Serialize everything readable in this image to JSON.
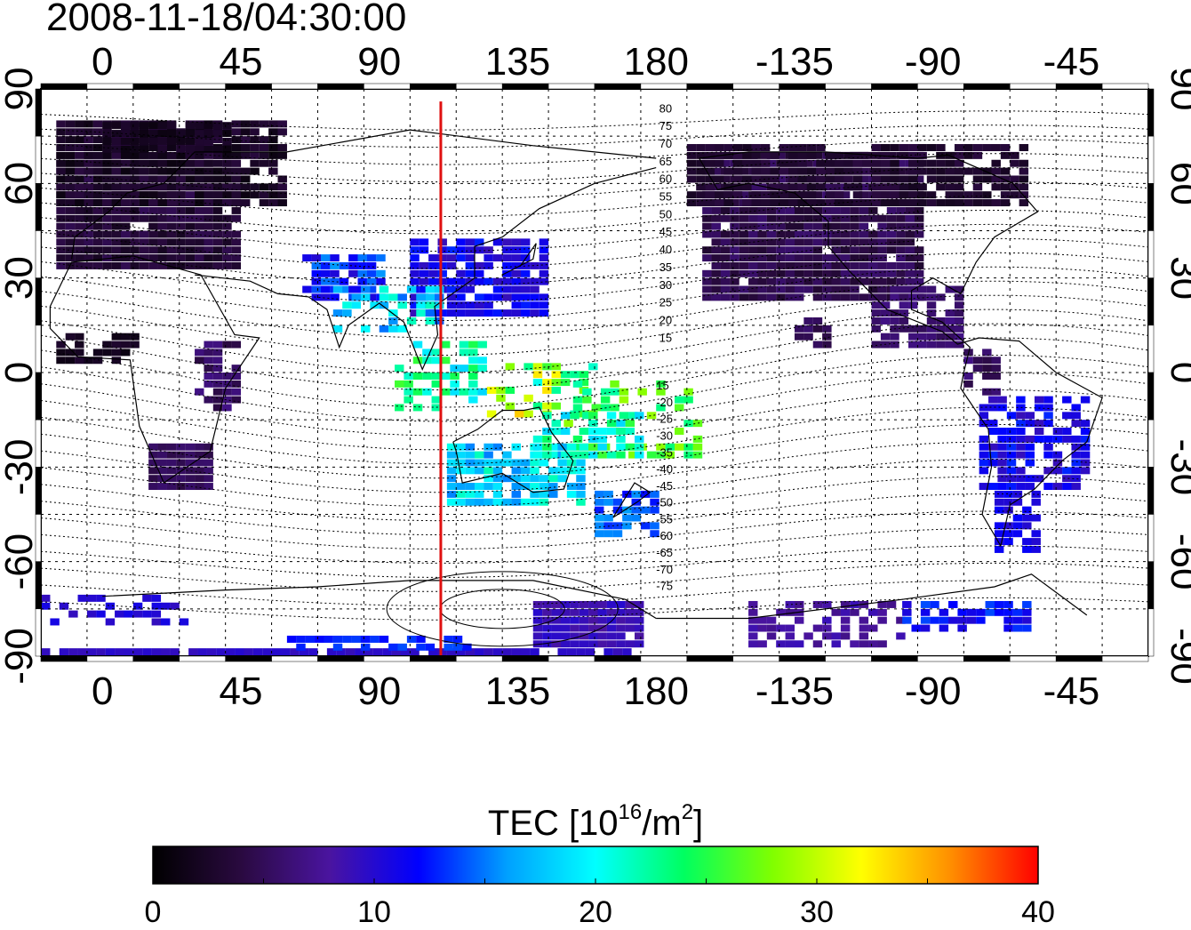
{
  "title": "2008-11-18/04:30:00",
  "map": {
    "type": "global TEC map",
    "x_ticks": [
      "0",
      "45",
      "90",
      "135",
      "180",
      "-135",
      "-90",
      "-45"
    ],
    "y_ticks": [
      "90",
      "60",
      "30",
      "0",
      "-30",
      "-60",
      "-90"
    ],
    "contour_labels_north": [
      "80",
      "75",
      "70",
      "65",
      "60",
      "55",
      "50",
      "45",
      "40",
      "35",
      "30",
      "25",
      "20",
      "15"
    ],
    "contour_labels_south": [
      "15",
      "-20",
      "-25",
      "-30",
      "-35",
      "-40",
      "-45",
      "-50",
      "-55",
      "-60",
      "-65",
      "-70",
      "-75"
    ],
    "reference_meridian_lon": 110,
    "reference_line_color": "#e01010",
    "grid": "dotted"
  },
  "colorbar": {
    "label_main": "TEC  [10",
    "label_sup": "16",
    "label_mid": "/m",
    "label_sup2": "2",
    "label_end": "]",
    "range": [
      0,
      40
    ],
    "ticks": [
      "0",
      "10",
      "20",
      "30",
      "40"
    ],
    "colors": [
      "#000000",
      "#2a0a40",
      "#4a14a0",
      "#0000ff",
      "#00a0ff",
      "#00ffff",
      "#00ff60",
      "#80ff00",
      "#ffff00",
      "#ff9000",
      "#ff0000"
    ]
  }
}
